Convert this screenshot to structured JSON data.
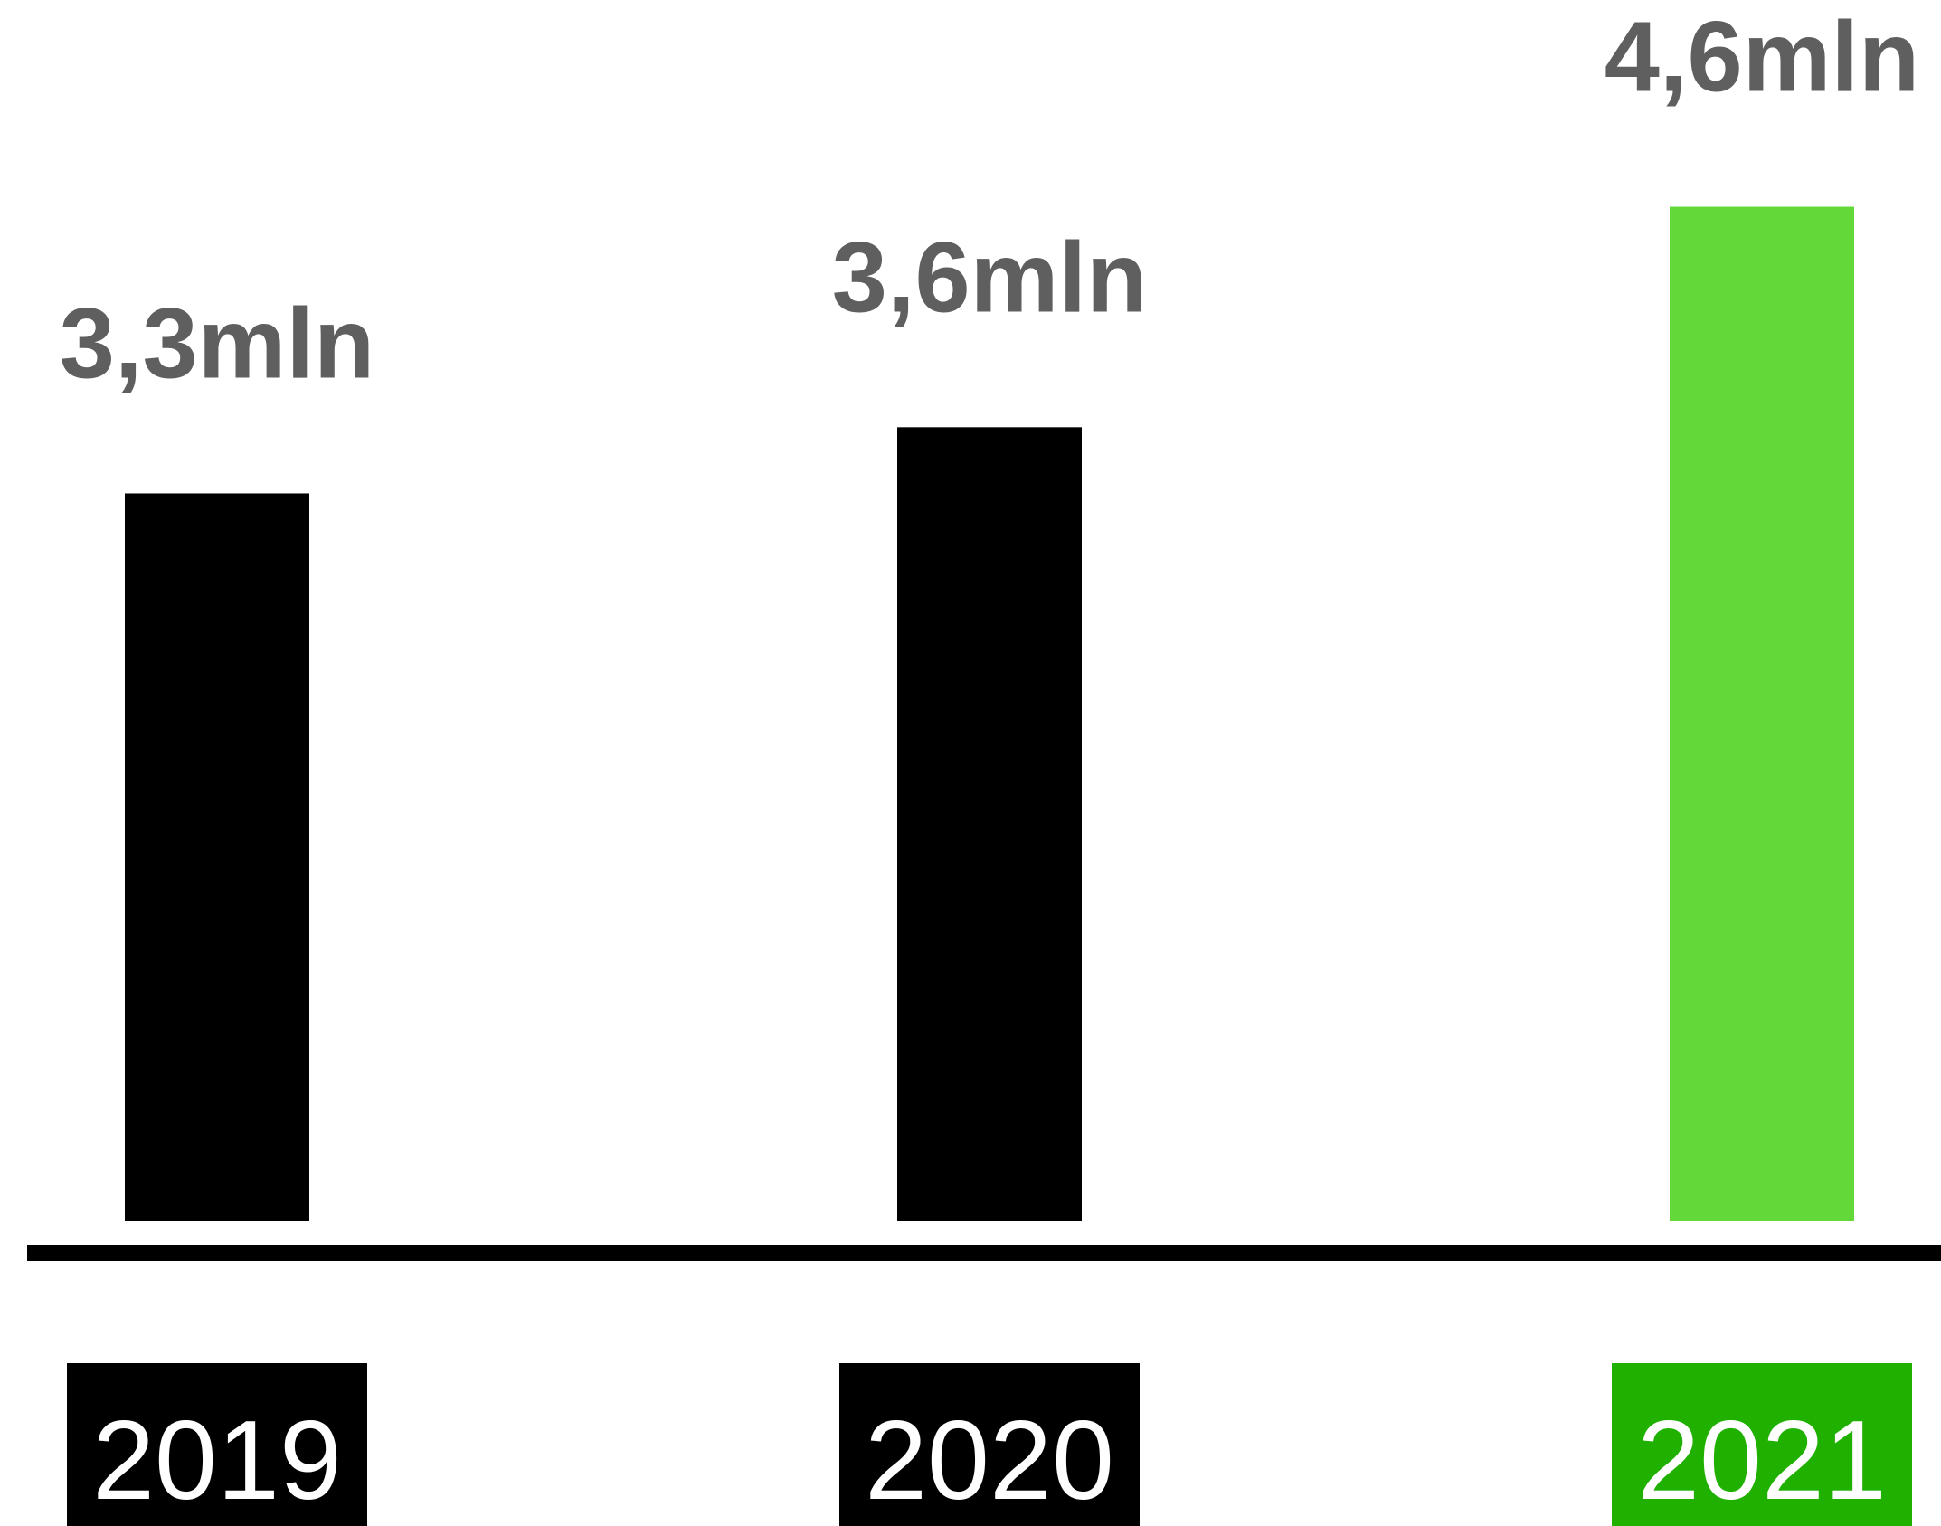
{
  "chart_data": {
    "type": "bar",
    "categories": [
      "2019",
      "2020",
      "2021"
    ],
    "values": [
      3.3,
      3.6,
      4.6
    ],
    "value_labels": [
      "3,3mln",
      "3,6mln",
      "4,6mln"
    ],
    "title": "",
    "xlabel": "",
    "ylabel": "",
    "grid": false,
    "legend": "none",
    "colors": {
      "bars": [
        "#000000",
        "#000000",
        "#62d938"
      ],
      "category_boxes": [
        "#000000",
        "#000000",
        "#1fb000"
      ],
      "value_label_text": "#5f5f5f",
      "category_label_text": "#ffffff",
      "baseline": "#000000"
    }
  }
}
